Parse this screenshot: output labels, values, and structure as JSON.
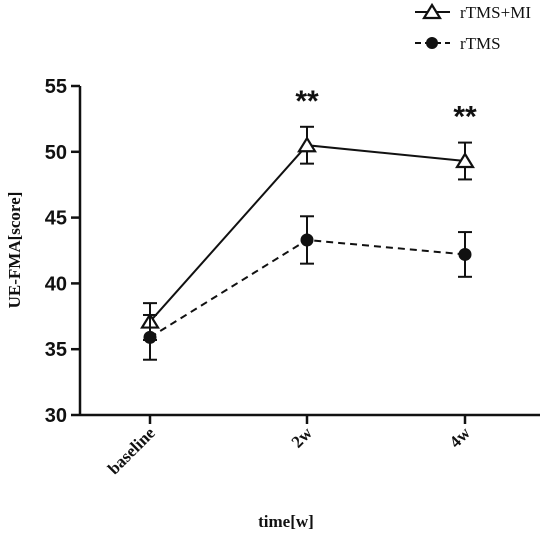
{
  "chart_data": {
    "type": "line",
    "categories": [
      "baseline",
      "2w",
      "4w"
    ],
    "series": [
      {
        "name": "rTMS+MI",
        "marker": "open-triangle",
        "line_style": "solid",
        "values": [
          37.1,
          50.5,
          49.3
        ],
        "error": [
          1.4,
          1.4,
          1.4
        ]
      },
      {
        "name": "rTMS",
        "marker": "filled-circle",
        "line_style": "dashed",
        "values": [
          35.9,
          43.3,
          42.2
        ],
        "error": [
          1.7,
          1.8,
          1.7
        ]
      }
    ],
    "annotations": [
      "",
      "**",
      "**"
    ],
    "xlabel": "time[w]",
    "ylabel": "UE-FMA[score]",
    "ylim": [
      30,
      55
    ],
    "yticks": [
      30,
      35,
      40,
      45,
      50,
      55
    ],
    "grid": false,
    "legend_position": "top-right",
    "colors": {
      "line": "#111111",
      "background": "#ffffff"
    }
  }
}
